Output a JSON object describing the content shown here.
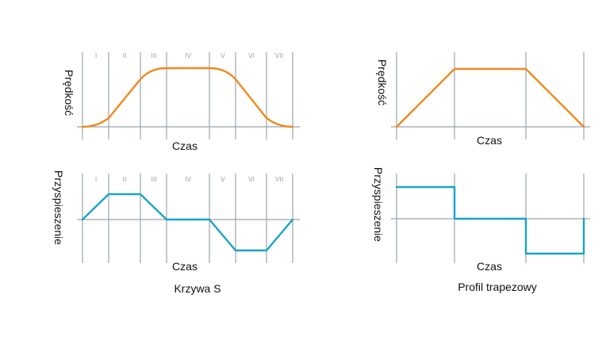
{
  "colors": {
    "velocity": "#f0891e",
    "acceleration": "#1aa3c8",
    "axis": "#9aa5ad"
  },
  "left": {
    "caption": "Krzywa S",
    "phases": [
      "I",
      "II",
      "III",
      "IV",
      "V",
      "VI",
      "VII"
    ],
    "velocity": {
      "ylabel": "Prędkość",
      "xlabel": "Czas"
    },
    "acceleration": {
      "ylabel": "Przyspieszenie",
      "xlabel": "Czas"
    }
  },
  "right": {
    "caption": "Profil trapezowy",
    "velocity": {
      "ylabel": "Prędkość",
      "xlabel": "Czas"
    },
    "acceleration": {
      "ylabel": "Przyspieszenie",
      "xlabel": "Czas"
    }
  }
}
